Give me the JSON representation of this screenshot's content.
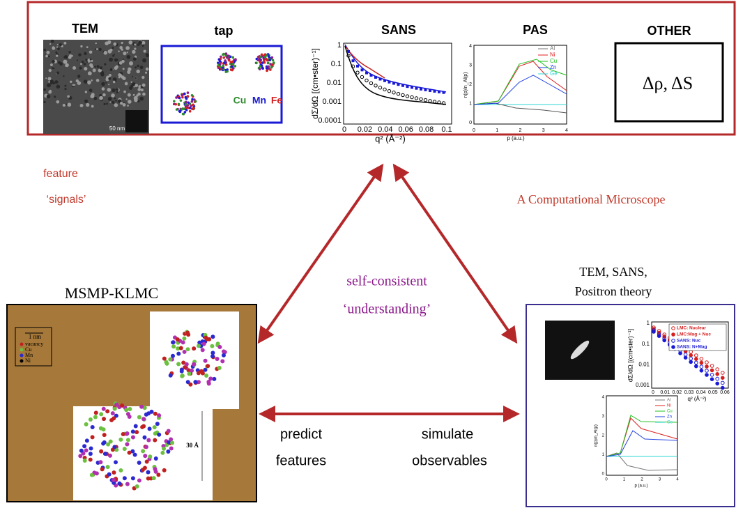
{
  "top_panel": {
    "tem": {
      "title": "TEM",
      "scale_bar": "50 nm"
    },
    "tap": {
      "title": "tap",
      "elements": [
        "Cu",
        "Mn",
        "Fe"
      ]
    },
    "sans": {
      "title": "SANS",
      "y_label": "dΣ/dΩ [(cm•ster)⁻¹]",
      "x_label": "q² (Å⁻²)",
      "y_ticks": [
        "1",
        "0.1",
        "0.01",
        "0.001",
        "0.0001"
      ],
      "x_ticks": [
        "0",
        "0.02",
        "0.04",
        "0.06",
        "0.08",
        "0.1"
      ]
    },
    "pas": {
      "title": "PAS",
      "y_label": "n(p)/n_Al(p)",
      "x_label": "p (a.u.)",
      "y_ticks": [
        "4",
        "3",
        "2",
        "1",
        "0"
      ],
      "x_ticks": [
        "0",
        "1",
        "2",
        "3",
        "4"
      ],
      "legend": [
        "Al",
        "Ni",
        "Cu",
        "Zn",
        "Ge"
      ]
    },
    "other": {
      "title": "OTHER",
      "text": "Δρ, ΔS"
    }
  },
  "feature_signals": [
    "feature",
    "‘signals’"
  ],
  "computational_microscope": "A Computational Microscope",
  "center": [
    "self-consistent",
    "‘understanding’"
  ],
  "msmp_klmc": {
    "title": "MSMP-KLMC",
    "scale": "1 nm",
    "legend": [
      "vacancy",
      "Cu",
      "Mn",
      "Ni"
    ],
    "size_label": "30 Å"
  },
  "predict": [
    "predict",
    "features"
  ],
  "simulate": [
    "simulate",
    "observables"
  ],
  "theory": {
    "title": [
      "TEM, SANS,",
      "Positron theory"
    ],
    "sans": {
      "y_label": "dΣ/dΩ [(cm•ster)⁻¹]",
      "x_label": "q² (Å⁻²)",
      "y_ticks": [
        "1",
        "0.1",
        "0.01",
        "0.001"
      ],
      "x_ticks": [
        "0",
        "0.01",
        "0.02",
        "0.03",
        "0.04",
        "0.05",
        "0.06"
      ],
      "legend": [
        "LMC: Nuclear",
        "LMC:Mag + Nuc",
        "SANS: Nuc",
        "SANS: N+Mag"
      ]
    },
    "pas": {
      "y_label": "n(p)/n_Al(p)",
      "x_label": "p (a.u.)",
      "y_ticks": [
        "4",
        "3",
        "2",
        "1",
        "0"
      ],
      "x_ticks": [
        "0",
        "1",
        "2",
        "3",
        "4"
      ],
      "legend": [
        "Al",
        "Ni",
        "Cu",
        "Zn",
        "Ge"
      ]
    }
  }
}
